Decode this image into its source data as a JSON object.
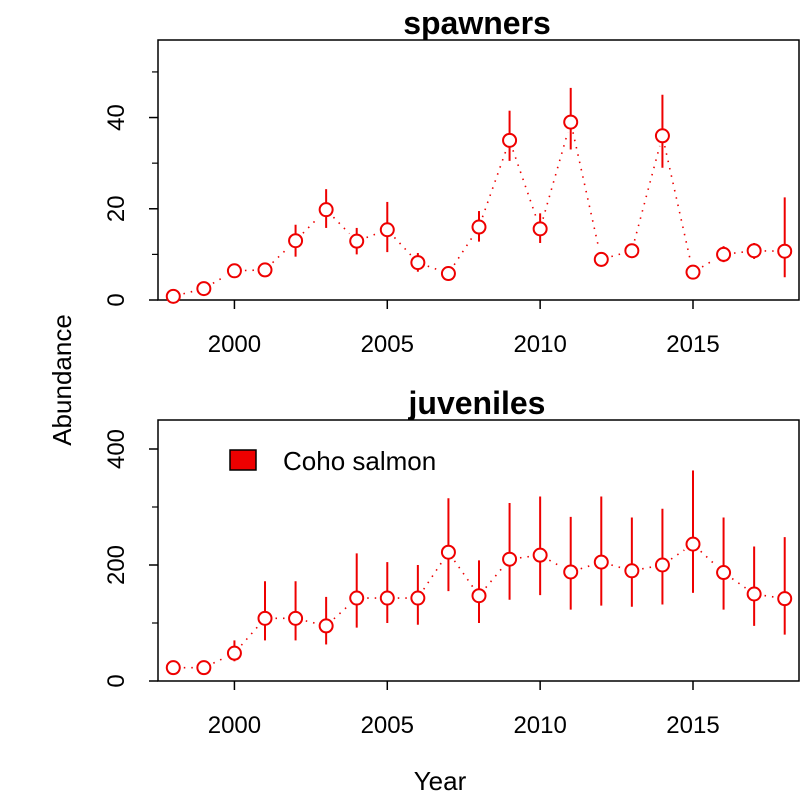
{
  "shared": {
    "xlabel": "Year",
    "ylabel": "Abundance"
  },
  "chart_data": [
    {
      "type": "line",
      "title": "spawners",
      "xlim": [
        1997.5,
        2018.5
      ],
      "ylim": [
        0,
        57
      ],
      "xticks": [
        2000,
        2005,
        2010,
        2015
      ],
      "yticks": [
        0,
        20,
        40
      ],
      "yminor": [
        10,
        30,
        50
      ],
      "series": [
        {
          "color": "#ee0000",
          "x": [
            1998,
            1999,
            2000,
            2001,
            2002,
            2003,
            2004,
            2005,
            2006,
            2007,
            2008,
            2009,
            2010,
            2011,
            2012,
            2013,
            2014,
            2015,
            2016,
            2017,
            2018
          ],
          "y": [
            0.8,
            2.5,
            6.4,
            6.6,
            13.0,
            19.8,
            12.9,
            15.4,
            8.2,
            5.8,
            16.0,
            35.0,
            15.6,
            39.0,
            8.9,
            10.8,
            36.0,
            6.1,
            10.0,
            10.8,
            10.7
          ],
          "lower": [
            0.0,
            1.5,
            5.0,
            5.2,
            9.5,
            15.8,
            10.0,
            10.5,
            6.2,
            4.5,
            12.8,
            30.5,
            12.5,
            33.0,
            7.3,
            9.2,
            29.0,
            5.0,
            8.3,
            9.0,
            5.0
          ],
          "upper": [
            1.5,
            3.5,
            7.8,
            8.0,
            16.5,
            24.3,
            15.8,
            21.5,
            10.3,
            7.2,
            19.5,
            41.5,
            19.0,
            46.5,
            10.4,
            12.3,
            45.0,
            7.3,
            11.8,
            12.5,
            22.5
          ]
        }
      ]
    },
    {
      "type": "line",
      "title": "juveniles",
      "xlim": [
        1997.5,
        2018.5
      ],
      "ylim": [
        0,
        450
      ],
      "xticks": [
        2000,
        2005,
        2010,
        2015
      ],
      "yticks": [
        0,
        200,
        400
      ],
      "yminor": [
        100,
        300
      ],
      "legend": {
        "label": "Coho salmon",
        "color": "#ee0000",
        "position": "top-left"
      },
      "series": [
        {
          "name": "Coho salmon",
          "color": "#ee0000",
          "x": [
            1998,
            1999,
            2000,
            2001,
            2002,
            2003,
            2004,
            2005,
            2006,
            2007,
            2008,
            2009,
            2010,
            2011,
            2012,
            2013,
            2014,
            2015,
            2016,
            2017,
            2018
          ],
          "y": [
            23,
            23,
            48,
            108,
            108,
            95,
            143,
            143,
            143,
            222,
            147,
            210,
            217,
            188,
            205,
            190,
            200,
            236,
            187,
            150,
            142
          ],
          "lower": [
            15,
            15,
            34,
            70,
            70,
            63,
            92,
            100,
            97,
            155,
            100,
            140,
            148,
            123,
            130,
            128,
            132,
            152,
            123,
            95,
            80
          ],
          "upper": [
            33,
            33,
            70,
            172,
            172,
            145,
            220,
            205,
            200,
            315,
            208,
            307,
            318,
            283,
            318,
            282,
            297,
            363,
            282,
            232,
            248
          ]
        }
      ]
    }
  ]
}
